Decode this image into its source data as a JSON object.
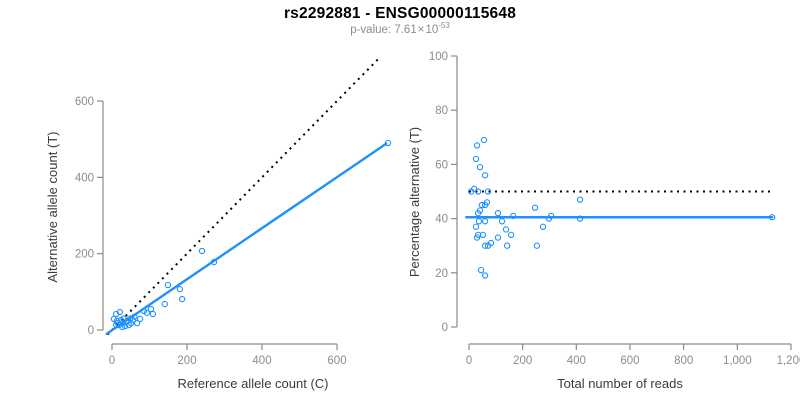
{
  "header": {
    "title": "rs2292881 - ENSG00000115648",
    "subtitle": {
      "label": "p-value:",
      "mantissa": "7.61",
      "times": "×",
      "base": "10",
      "exponent": "-53"
    }
  },
  "colors": {
    "accent": "#1E90FF",
    "dotted_line": "#000000",
    "axis": "#8a8a8a",
    "tick_text": "#8c8c8c",
    "label_text": "#3b3b3b",
    "title_text": "#000000",
    "subtitle_text": "#8c8c8c",
    "background": "#ffffff"
  },
  "chart_data": [
    {
      "type": "scatter",
      "name": "allele-counts-scatter",
      "xlabel": "Reference allele count (C)",
      "ylabel": "Alternative allele count (T)",
      "xlim": [
        -20,
        760
      ],
      "ylim": [
        -45,
        720
      ],
      "grid": false,
      "legend": "none",
      "xticks": [
        0,
        200,
        400,
        600
      ],
      "xtick_labels": [
        "0",
        "200",
        "400",
        "600"
      ],
      "yticks": [
        0,
        200,
        400,
        600
      ],
      "ytick_labels": [
        "0",
        "200",
        "400",
        "600"
      ],
      "lines": [
        {
          "name": "identity-line",
          "style": "dotted",
          "color": "#000000",
          "x1": -12,
          "y1": -12,
          "x2": 715,
          "y2": 715
        },
        {
          "name": "fit-line",
          "style": "solid",
          "color": "#1E90FF",
          "x1": -14,
          "y1": -10,
          "x2": 731,
          "y2": 488
        }
      ],
      "point_color": "#1E90FF",
      "points": [
        [
          5,
          29
        ],
        [
          11,
          42
        ],
        [
          11,
          13
        ],
        [
          13,
          24
        ],
        [
          15,
          18
        ],
        [
          19,
          13
        ],
        [
          21,
          47
        ],
        [
          24,
          26
        ],
        [
          27,
          8
        ],
        [
          29,
          18
        ],
        [
          31,
          30
        ],
        [
          35,
          10
        ],
        [
          40,
          24
        ],
        [
          45,
          13
        ],
        [
          48,
          30
        ],
        [
          51,
          18
        ],
        [
          56,
          26
        ],
        [
          60,
          35
        ],
        [
          67,
          18
        ],
        [
          75,
          29
        ],
        [
          85,
          50
        ],
        [
          93,
          45
        ],
        [
          104,
          55
        ],
        [
          109,
          42
        ],
        [
          141,
          68
        ],
        [
          149,
          118
        ],
        [
          181,
          107
        ],
        [
          187,
          81
        ],
        [
          240,
          207
        ],
        [
          272,
          178
        ],
        [
          736,
          490
        ]
      ]
    },
    {
      "type": "scatter",
      "name": "percentage-alternative-scatter",
      "xlabel": "Total number of reads",
      "ylabel": "Percentage alternative (T)",
      "xlim": [
        -40,
        1240
      ],
      "ylim": [
        -6,
        106
      ],
      "grid": false,
      "legend": "none",
      "xticks": [
        0,
        200,
        400,
        600,
        800,
        1000,
        1200
      ],
      "xtick_labels": [
        "0",
        "200",
        "400",
        "600",
        "800",
        "1,000",
        "1,200"
      ],
      "yticks": [
        0,
        20,
        40,
        60,
        80,
        100
      ],
      "ytick_labels": [
        "0",
        "20",
        "40",
        "60",
        "80",
        "100"
      ],
      "lines": [
        {
          "name": "null-line",
          "style": "dotted",
          "color": "#000000",
          "x1": 0,
          "y1": 50,
          "x2": 1122,
          "y2": 50
        },
        {
          "name": "fit-line",
          "style": "solid",
          "color": "#1E90FF",
          "x1": -10,
          "y1": 40.5,
          "x2": 1130,
          "y2": 40.5
        }
      ],
      "point_color": "#1E90FF",
      "points": [
        [
          8,
          50
        ],
        [
          19,
          51
        ],
        [
          26,
          62
        ],
        [
          26,
          37
        ],
        [
          30,
          67
        ],
        [
          30,
          33
        ],
        [
          34,
          50
        ],
        [
          34,
          42
        ],
        [
          34,
          34
        ],
        [
          37,
          39
        ],
        [
          41,
          59
        ],
        [
          41,
          43
        ],
        [
          45,
          21
        ],
        [
          48,
          45
        ],
        [
          52,
          34
        ],
        [
          56,
          69
        ],
        [
          60,
          56
        ],
        [
          60,
          45
        ],
        [
          60,
          39
        ],
        [
          60,
          30
        ],
        [
          60,
          19
        ],
        [
          67,
          46
        ],
        [
          71,
          50
        ],
        [
          71,
          30
        ],
        [
          82,
          31
        ],
        [
          108,
          42
        ],
        [
          108,
          33
        ],
        [
          123,
          39
        ],
        [
          138,
          36
        ],
        [
          142,
          30
        ],
        [
          157,
          34
        ],
        [
          165,
          41
        ],
        [
          246,
          44
        ],
        [
          253,
          30
        ],
        [
          276,
          37
        ],
        [
          298,
          40
        ],
        [
          306,
          41
        ],
        [
          414,
          47
        ],
        [
          414,
          40
        ],
        [
          1130,
          40.5
        ]
      ]
    }
  ]
}
